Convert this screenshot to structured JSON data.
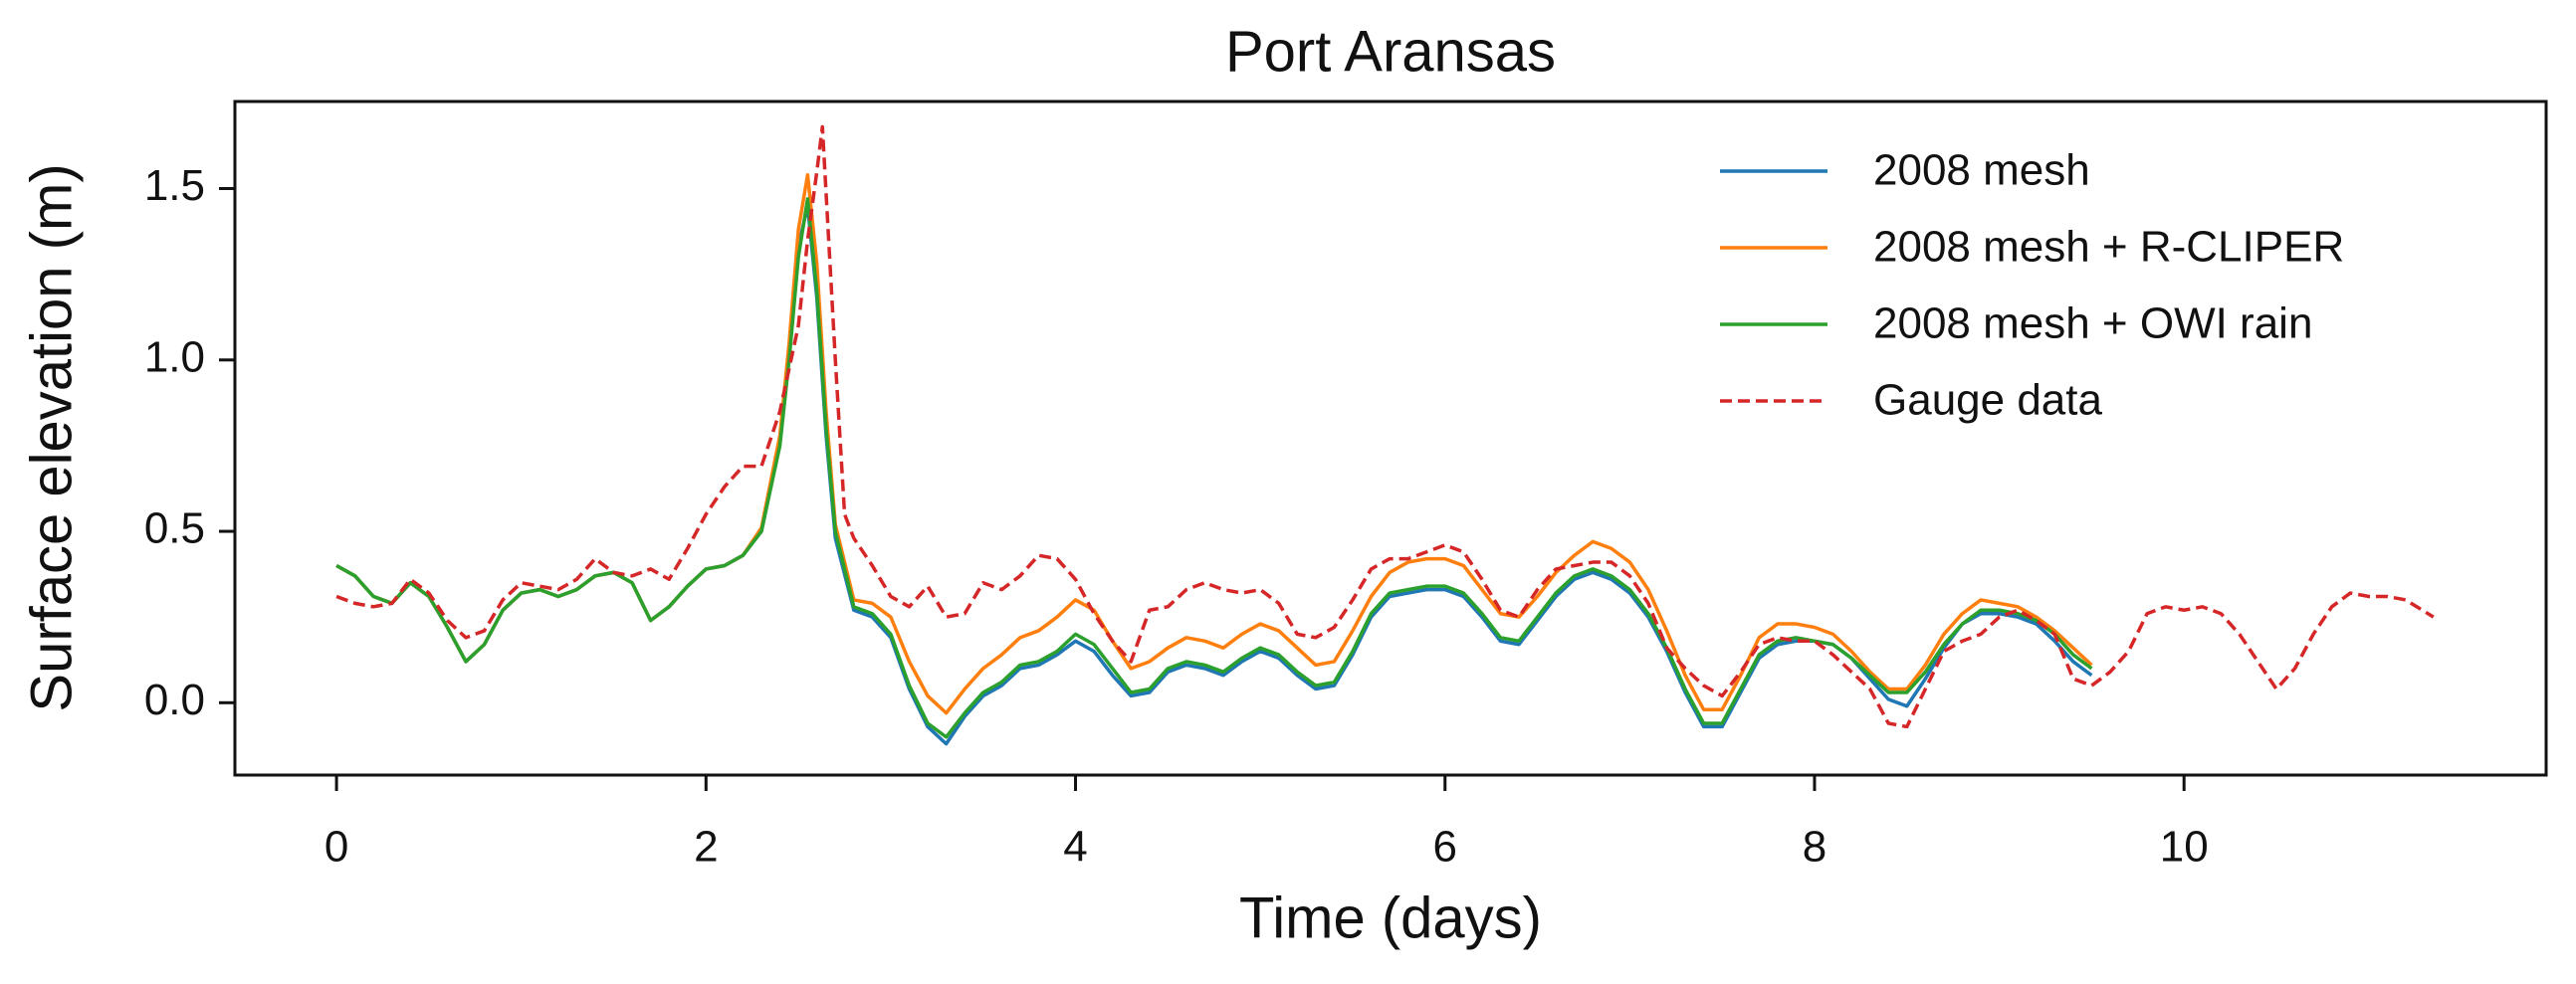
{
  "chart_data": {
    "type": "line",
    "title": "Port Aransas",
    "xlabel": "Time (days)",
    "ylabel": "Surface elevation (m)",
    "xlim": [
      -0.55,
      11.96
    ],
    "ylim": [
      -0.211,
      1.754
    ],
    "xticks": [
      0,
      2,
      4,
      6,
      8,
      10
    ],
    "yticks": [
      {
        "value": 0,
        "label": "0.0"
      },
      {
        "value": 0.5,
        "label": "0.5"
      },
      {
        "value": 1,
        "label": "1.0"
      },
      {
        "value": 1.5,
        "label": "1.5"
      }
    ],
    "legend": "upper right",
    "x": [
      0,
      0.1,
      0.2,
      0.3,
      0.4,
      0.5,
      0.6,
      0.7,
      0.8,
      0.9,
      1,
      1.1,
      1.2,
      1.3,
      1.4,
      1.5,
      1.6,
      1.7,
      1.8,
      1.9,
      2,
      2.1,
      2.2,
      2.3,
      2.4,
      2.45,
      2.5,
      2.55,
      2.6,
      2.65,
      2.7,
      2.8,
      2.9,
      3,
      3.1,
      3.2,
      3.3,
      3.4,
      3.5,
      3.6,
      3.7,
      3.8,
      3.9,
      4,
      4.1,
      4.2,
      4.3,
      4.4,
      4.5,
      4.6,
      4.7,
      4.8,
      4.9,
      5,
      5.1,
      5.2,
      5.3,
      5.4,
      5.5,
      5.6,
      5.7,
      5.8,
      5.9,
      6,
      6.1,
      6.2,
      6.3,
      6.4,
      6.5,
      6.6,
      6.7,
      6.8,
      6.9,
      7,
      7.1,
      7.2,
      7.3,
      7.4,
      7.5,
      7.6,
      7.7,
      7.8,
      7.9,
      8,
      8.1,
      8.2,
      8.3,
      8.4,
      8.5,
      8.6,
      8.7,
      8.8,
      8.9,
      9,
      9.1,
      9.2,
      9.3,
      9.4,
      9.5
    ],
    "series": [
      {
        "name": "2008 mesh",
        "color": "#1f77b4",
        "linestyle": "-",
        "values": [
          0.4,
          0.37,
          0.31,
          0.29,
          0.35,
          0.31,
          0.22,
          0.12,
          0.17,
          0.27,
          0.32,
          0.33,
          0.31,
          0.33,
          0.37,
          0.38,
          0.35,
          0.24,
          0.28,
          0.34,
          0.39,
          0.4,
          0.43,
          0.5,
          0.76,
          1.02,
          1.33,
          1.45,
          1.18,
          0.78,
          0.48,
          0.27,
          0.25,
          0.19,
          0.04,
          -0.07,
          -0.12,
          -0.04,
          0.02,
          0.05,
          0.1,
          0.11,
          0.14,
          0.18,
          0.15,
          0.08,
          0.02,
          0.03,
          0.09,
          0.11,
          0.1,
          0.08,
          0.12,
          0.15,
          0.13,
          0.08,
          0.04,
          0.05,
          0.14,
          0.25,
          0.31,
          0.32,
          0.33,
          0.33,
          0.31,
          0.25,
          0.18,
          0.17,
          0.24,
          0.31,
          0.36,
          0.38,
          0.36,
          0.32,
          0.25,
          0.15,
          0.03,
          -0.07,
          -0.07,
          0.03,
          0.13,
          0.17,
          0.18,
          0.18,
          0.17,
          0.13,
          0.07,
          0.01,
          -0.01,
          0.07,
          0.16,
          0.23,
          0.26,
          0.26,
          0.25,
          0.23,
          0.18,
          0.12,
          0.08
        ]
      },
      {
        "name": "2008 mesh + R-CLIPER",
        "color": "#ff7f0e",
        "linestyle": "-",
        "values": [
          0.4,
          0.37,
          0.31,
          0.29,
          0.35,
          0.31,
          0.22,
          0.12,
          0.17,
          0.27,
          0.32,
          0.33,
          0.31,
          0.33,
          0.37,
          0.38,
          0.35,
          0.24,
          0.28,
          0.34,
          0.39,
          0.4,
          0.43,
          0.51,
          0.78,
          1.05,
          1.38,
          1.54,
          1.28,
          0.85,
          0.52,
          0.3,
          0.29,
          0.25,
          0.12,
          0.02,
          -0.03,
          0.04,
          0.1,
          0.14,
          0.19,
          0.21,
          0.25,
          0.3,
          0.27,
          0.18,
          0.1,
          0.12,
          0.16,
          0.19,
          0.18,
          0.16,
          0.2,
          0.23,
          0.21,
          0.16,
          0.11,
          0.12,
          0.21,
          0.31,
          0.38,
          0.41,
          0.42,
          0.42,
          0.4,
          0.33,
          0.26,
          0.25,
          0.31,
          0.38,
          0.43,
          0.47,
          0.45,
          0.41,
          0.33,
          0.21,
          0.08,
          -0.02,
          -0.02,
          0.08,
          0.19,
          0.23,
          0.23,
          0.22,
          0.2,
          0.15,
          0.09,
          0.04,
          0.04,
          0.11,
          0.2,
          0.26,
          0.3,
          0.29,
          0.28,
          0.25,
          0.21,
          0.16,
          0.11
        ]
      },
      {
        "name": "2008 mesh + OWI rain",
        "color": "#2ca02c",
        "linestyle": "-",
        "values": [
          0.4,
          0.37,
          0.31,
          0.29,
          0.35,
          0.31,
          0.22,
          0.12,
          0.17,
          0.27,
          0.32,
          0.33,
          0.31,
          0.33,
          0.37,
          0.38,
          0.35,
          0.24,
          0.28,
          0.34,
          0.39,
          0.4,
          0.43,
          0.5,
          0.75,
          1.0,
          1.3,
          1.47,
          1.2,
          0.8,
          0.5,
          0.28,
          0.26,
          0.2,
          0.05,
          -0.06,
          -0.1,
          -0.03,
          0.03,
          0.06,
          0.11,
          0.12,
          0.15,
          0.2,
          0.17,
          0.1,
          0.03,
          0.04,
          0.1,
          0.12,
          0.11,
          0.09,
          0.13,
          0.16,
          0.14,
          0.09,
          0.05,
          0.06,
          0.15,
          0.26,
          0.32,
          0.33,
          0.34,
          0.34,
          0.32,
          0.26,
          0.19,
          0.18,
          0.25,
          0.32,
          0.37,
          0.39,
          0.37,
          0.33,
          0.26,
          0.16,
          0.04,
          -0.06,
          -0.06,
          0.04,
          0.14,
          0.18,
          0.19,
          0.18,
          0.17,
          0.13,
          0.08,
          0.03,
          0.03,
          0.09,
          0.17,
          0.23,
          0.27,
          0.27,
          0.26,
          0.24,
          0.2,
          0.14,
          0.1
        ]
      },
      {
        "name": "Gauge data",
        "color": "#d62728",
        "linestyle": "--",
        "x": [
          0,
          0.1,
          0.2,
          0.3,
          0.4,
          0.5,
          0.6,
          0.7,
          0.8,
          0.9,
          1,
          1.1,
          1.2,
          1.3,
          1.4,
          1.5,
          1.6,
          1.7,
          1.8,
          1.9,
          2,
          2.1,
          2.2,
          2.3,
          2.4,
          2.5,
          2.55,
          2.6,
          2.63,
          2.7,
          2.75,
          2.8,
          2.9,
          3,
          3.1,
          3.2,
          3.3,
          3.4,
          3.5,
          3.6,
          3.7,
          3.8,
          3.9,
          4,
          4.1,
          4.2,
          4.3,
          4.4,
          4.5,
          4.6,
          4.7,
          4.8,
          4.9,
          5,
          5.1,
          5.2,
          5.3,
          5.4,
          5.5,
          5.6,
          5.7,
          5.8,
          5.9,
          6,
          6.1,
          6.2,
          6.3,
          6.4,
          6.5,
          6.6,
          6.7,
          6.8,
          6.9,
          7,
          7.1,
          7.2,
          7.3,
          7.4,
          7.5,
          7.6,
          7.7,
          7.8,
          7.9,
          8,
          8.1,
          8.2,
          8.3,
          8.4,
          8.5,
          8.6,
          8.7,
          8.8,
          8.9,
          9,
          9.1,
          9.2,
          9.3,
          9.4,
          9.5,
          9.6,
          9.7,
          9.8,
          9.9,
          10,
          10.1,
          10.2,
          10.3,
          10.4,
          10.5,
          10.6,
          10.7,
          10.8,
          10.9,
          11,
          11.1,
          11.2,
          11.35
        ],
        "values": [
          0.31,
          0.29,
          0.28,
          0.29,
          0.36,
          0.32,
          0.24,
          0.19,
          0.21,
          0.3,
          0.35,
          0.34,
          0.33,
          0.36,
          0.42,
          0.38,
          0.37,
          0.39,
          0.36,
          0.45,
          0.55,
          0.63,
          0.69,
          0.69,
          0.85,
          1.1,
          1.35,
          1.55,
          1.68,
          1.0,
          0.55,
          0.48,
          0.4,
          0.31,
          0.28,
          0.34,
          0.25,
          0.26,
          0.35,
          0.33,
          0.37,
          0.43,
          0.42,
          0.36,
          0.26,
          0.18,
          0.12,
          0.27,
          0.28,
          0.33,
          0.35,
          0.33,
          0.32,
          0.33,
          0.29,
          0.2,
          0.19,
          0.22,
          0.3,
          0.39,
          0.42,
          0.42,
          0.44,
          0.46,
          0.44,
          0.36,
          0.27,
          0.25,
          0.33,
          0.39,
          0.4,
          0.41,
          0.41,
          0.37,
          0.29,
          0.16,
          0.1,
          0.05,
          0.02,
          0.09,
          0.17,
          0.19,
          0.18,
          0.18,
          0.14,
          0.09,
          0.04,
          -0.06,
          -0.07,
          0.04,
          0.15,
          0.18,
          0.2,
          0.25,
          0.27,
          0.24,
          0.2,
          0.07,
          0.05,
          0.09,
          0.15,
          0.26,
          0.28,
          0.27,
          0.28,
          0.26,
          0.2,
          0.12,
          0.04,
          0.1,
          0.2,
          0.28,
          0.32,
          0.31,
          0.31,
          0.3,
          0.25
        ]
      }
    ]
  }
}
